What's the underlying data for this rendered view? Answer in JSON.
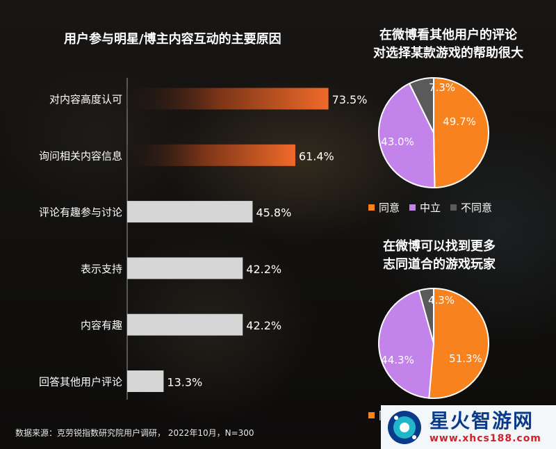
{
  "chart_data": [
    {
      "type": "bar",
      "orientation": "horizontal",
      "title": "用户参与明星/博主内容互动的主要原因",
      "categories": [
        "对内容高度认可",
        "询问相关内容信息",
        "评论有趣参与讨论",
        "表示支持",
        "内容有趣",
        "回答其他用户评论"
      ],
      "values": [
        73.5,
        61.4,
        45.8,
        42.2,
        42.2,
        13.3
      ],
      "value_labels": [
        "73.5%",
        "61.4%",
        "45.8%",
        "42.2%",
        "42.2%",
        "13.3%"
      ],
      "highlight_colors": [
        "#ee6a2a",
        "#ee6a2a",
        "#d6d6d6",
        "#d6d6d6",
        "#d6d6d6",
        "#d6d6d6"
      ],
      "grid": false
    },
    {
      "type": "pie",
      "title_lines": [
        "在微博看其他用户的评论",
        "对选择某款游戏的帮助很大"
      ],
      "labels": [
        "同意",
        "中立",
        "不同意"
      ],
      "values": [
        49.7,
        43.0,
        7.3
      ],
      "value_labels": [
        "49.7%",
        "43.0%",
        "7.3%"
      ],
      "colors": [
        "#f7821e",
        "#c283ea",
        "#5a5a5a"
      ],
      "legend_position": "bottom"
    },
    {
      "type": "pie",
      "title_lines": [
        "在微博可以找到更多",
        "志同道合的游戏玩家"
      ],
      "labels": [
        "同意",
        "中立",
        "不同意"
      ],
      "values": [
        51.3,
        44.3,
        4.3
      ],
      "value_labels": [
        "51.3%",
        "44.3%",
        "4.3%"
      ],
      "colors": [
        "#f7821e",
        "#c283ea",
        "#5a5a5a"
      ],
      "legend_position": "bottom"
    }
  ],
  "footer": {
    "source": "数据来源：克劳锐指数研究院用户调研， 2022年10月，N=300"
  },
  "watermark": {
    "name": "星火智游网",
    "url": "www.xhcs188.com"
  }
}
